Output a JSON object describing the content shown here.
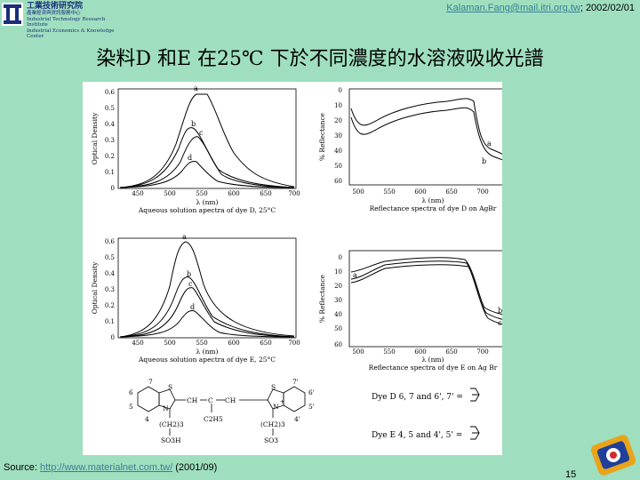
{
  "header": {
    "logo_line1": "工業技術研究院",
    "logo_line2": "產業經濟與資訊服務中心",
    "logo_line3": "Industrial Technology Research Institute",
    "logo_line4": "Industrial Economics & Knowledge Center",
    "email": "Kalaman.Fang@mail.itri.org.tw",
    "date": "; 2002/02/01"
  },
  "slide": {
    "title": "染料D 和E 在25℃ 下於不同濃度的水溶液吸收光譜"
  },
  "figure": {
    "panel_d_abs": {
      "caption": "Aqueous solution apectra of dye D, 25°C",
      "xlabel": "λ (nm)",
      "ylabel": "Optical Density",
      "xticks": [
        "450",
        "500",
        "550",
        "600",
        "650",
        "700"
      ],
      "yticks": [
        "0",
        "0.1",
        "0.2",
        "0.3",
        "0.4",
        "0.5",
        "0.6"
      ],
      "curve_labels": [
        "a",
        "b",
        "c",
        "d"
      ]
    },
    "panel_d_refl": {
      "caption": "Reflectance spectra of dye D on AgBr",
      "xlabel": "λ (nm)",
      "ylabel": "% Reflectance",
      "xticks": [
        "500",
        "550",
        "600",
        "650",
        "700",
        "750"
      ],
      "yticks": [
        "0",
        "10",
        "20",
        "30",
        "40",
        "50",
        "60"
      ],
      "curve_labels": [
        "a",
        "b"
      ]
    },
    "panel_e_abs": {
      "caption": "Aqueous solution apectra of dye E, 25°C",
      "xlabel": "λ (nm)",
      "ylabel": "Optical Density",
      "xticks": [
        "450",
        "500",
        "550",
        "600",
        "650",
        "700"
      ],
      "yticks": [
        "0",
        "0.1",
        "0.2",
        "0.3",
        "0.4",
        "0.5",
        "0.6"
      ],
      "curve_labels": [
        "a",
        "b",
        "c",
        "d"
      ]
    },
    "panel_e_refl": {
      "caption": "Reflectance spectra of dye E on Ag Br",
      "xlabel": "λ (nm)",
      "ylabel": "% Reflectance",
      "xticks": [
        "500",
        "550",
        "600",
        "650",
        "700",
        "750"
      ],
      "yticks": [
        "0",
        "10",
        "20",
        "30",
        "40",
        "50",
        "60"
      ],
      "curve_labels": [
        "a",
        "b",
        "c"
      ]
    },
    "structure": {
      "labels": [
        "6",
        "7",
        "5",
        "4",
        "S",
        "N",
        "CH",
        "C",
        "CH",
        "S",
        "N",
        "7'",
        "6'",
        "5'",
        "4'",
        "(CH2)3",
        "C2H5",
        "(CH2)3",
        "SO3H",
        "SO3",
        "+"
      ],
      "legend_d": "Dye D 6, 7 and 6', 7' =",
      "legend_e": "Dye E 4, 5 and 4', 5' ="
    }
  },
  "footer": {
    "source_label": "Source: ",
    "source_link": "http://www.materialnet.com.tw/",
    "source_year": " (2001/09)",
    "page_number": "15"
  },
  "colors": {
    "background": "#9fdfbf",
    "logo": "#1a2f7a",
    "link": "#3b7f99"
  }
}
